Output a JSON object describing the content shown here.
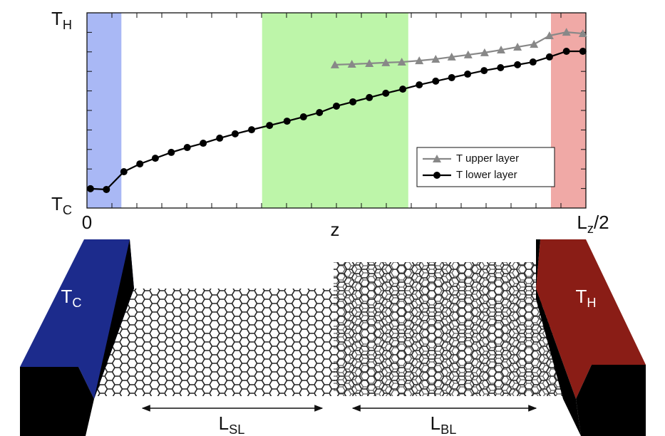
{
  "chart_data": {
    "type": "line",
    "xlabel": "z",
    "xlim": [
      0,
      1
    ],
    "xticks": [
      0,
      {
        "value": 1,
        "label": "L_z/2"
      }
    ],
    "ylim": [
      0,
      1
    ],
    "yticks": [
      {
        "value": 0,
        "label": "T_C"
      },
      {
        "value": 1,
        "label": "T_H"
      }
    ],
    "regions": [
      {
        "xlim": [
          0,
          0.069
        ],
        "color": "#a9b8f5"
      },
      {
        "xlim": [
          0.351,
          0.644
        ],
        "color": "#bdf5a9"
      },
      {
        "xlim": [
          0.93,
          1
        ],
        "color": "#f0a9a6"
      }
    ],
    "legend": "lower right",
    "series": [
      {
        "name": "T upper layer",
        "color": "#888888",
        "marker": "triangle",
        "x": [
          0.497,
          0.531,
          0.566,
          0.599,
          0.631,
          0.666,
          0.699,
          0.731,
          0.764,
          0.797,
          0.83,
          0.863,
          0.896,
          0.927,
          0.961,
          0.994
        ],
        "values": [
          0.734,
          0.737,
          0.741,
          0.745,
          0.748,
          0.755,
          0.763,
          0.774,
          0.785,
          0.796,
          0.81,
          0.825,
          0.839,
          0.883,
          0.901,
          0.894
        ]
      },
      {
        "name": "T lower layer",
        "color": "#000000",
        "marker": "circle",
        "x": [
          0.007,
          0.039,
          0.074,
          0.106,
          0.137,
          0.169,
          0.201,
          0.233,
          0.266,
          0.297,
          0.33,
          0.366,
          0.401,
          0.434,
          0.466,
          0.5,
          0.533,
          0.566,
          0.599,
          0.633,
          0.666,
          0.699,
          0.731,
          0.763,
          0.796,
          0.829,
          0.863,
          0.894,
          0.927,
          0.961,
          0.994
        ],
        "values": [
          0.099,
          0.095,
          0.186,
          0.226,
          0.255,
          0.285,
          0.31,
          0.332,
          0.358,
          0.38,
          0.401,
          0.423,
          0.445,
          0.467,
          0.489,
          0.522,
          0.544,
          0.566,
          0.588,
          0.609,
          0.631,
          0.65,
          0.668,
          0.686,
          0.704,
          0.719,
          0.734,
          0.748,
          0.774,
          0.803,
          0.803
        ]
      }
    ]
  },
  "diagram": {
    "cold_block": "T_C",
    "hot_block": "T_H",
    "single_layer_length": "L_SL",
    "bilayer_length": "L_BL"
  }
}
